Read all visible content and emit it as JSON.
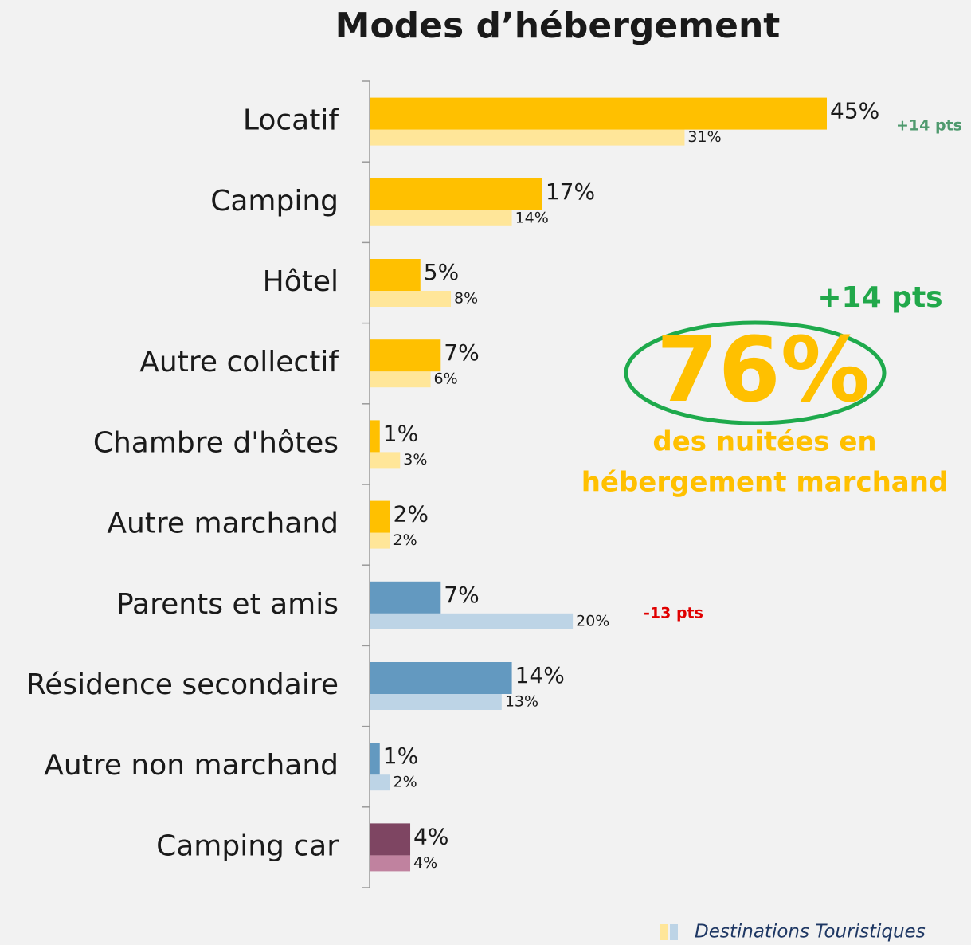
{
  "chart_data": {
    "type": "hbar_grouped",
    "title": "Modes d’hébergement",
    "categories": [
      "Locatif",
      "Camping",
      "Hôtel",
      "Autre collectif",
      "Chambre d'hôtes",
      "Autre marchand",
      "Parents et amis",
      "Résidence secondaire",
      "Autre non marchand",
      "Camping car"
    ],
    "series": [
      {
        "colors": [
          "#FFC000",
          "#FFC000",
          "#FFC000",
          "#FFC000",
          "#FFC000",
          "#FFC000",
          "#6399C0",
          "#6399C0",
          "#6399C0",
          "#7E4562"
        ],
        "values": [
          45,
          17,
          5,
          7,
          1,
          2,
          7,
          14,
          1,
          4
        ],
        "value_labels": [
          "45%",
          "17%",
          "5%",
          "7%",
          "1%",
          "2%",
          "7%",
          "14%",
          "1%",
          "4%"
        ]
      },
      {
        "name": "Destinations Touristiques",
        "colors": [
          "#FFE699",
          "#FFE699",
          "#FFE699",
          "#FFE699",
          "#FFE699",
          "#FFE699",
          "#BDD4E6",
          "#BDD4E6",
          "#BDD4E6",
          "#C0829F"
        ],
        "values": [
          31,
          14,
          8,
          6,
          3,
          2,
          20,
          13,
          2,
          4
        ],
        "value_labels": [
          "31%",
          "14%",
          "8%",
          "6%",
          "3%",
          "2%",
          "20%",
          "13%",
          "2%",
          "4%"
        ]
      }
    ],
    "xlim": [
      0,
      45
    ],
    "annotations": [
      "+14 pts",
      "-13 pts",
      "+14 pts",
      "76%",
      "des nuitées en",
      "hébergement marchand"
    ]
  }
}
